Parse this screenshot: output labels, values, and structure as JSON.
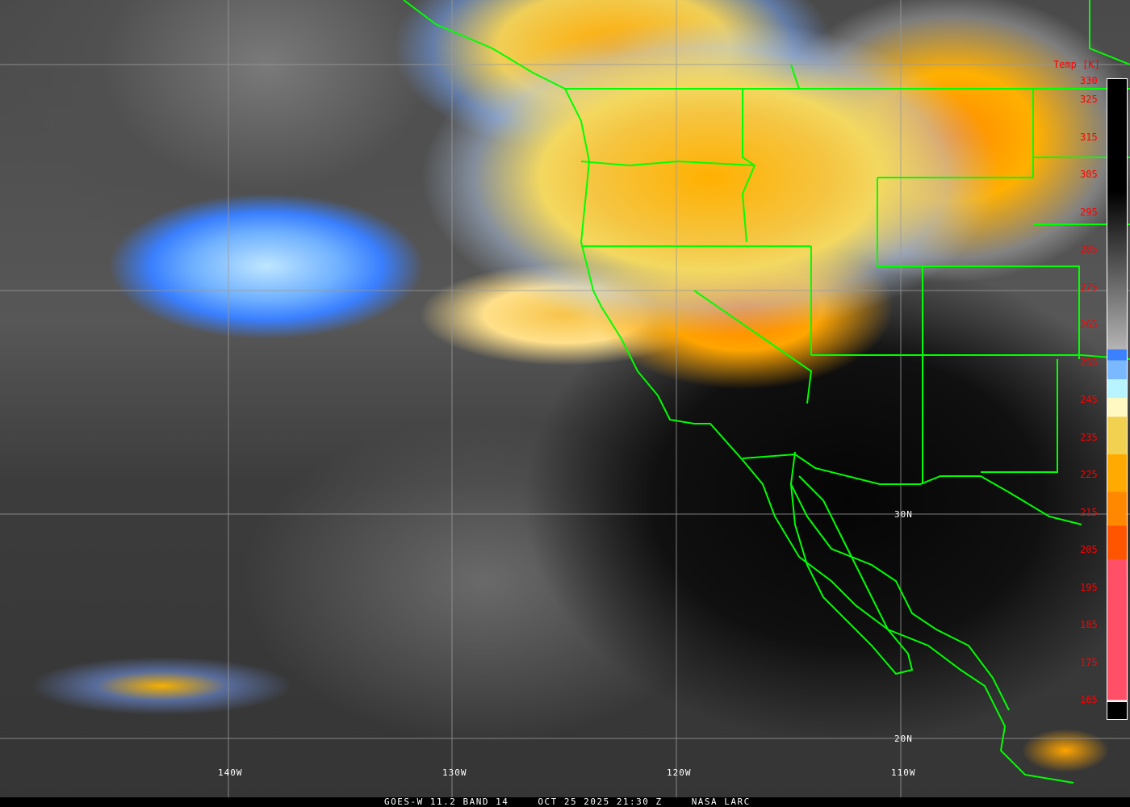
{
  "image": {
    "satellite": "GOES-W",
    "caption": {
      "product": "GOES-W 11.2 BAND 14",
      "datetime": "OCT 25 2025 21:30 Z",
      "source": "NASA LARC"
    }
  },
  "grid": {
    "longitude_labels": [
      "140W",
      "130W",
      "120W",
      "110W"
    ],
    "latitude_labels": [
      "30N",
      "20N"
    ]
  },
  "colorbar": {
    "title": "Temp [K]",
    "ticks": [
      "330",
      "325",
      "315",
      "305",
      "295",
      "285",
      "275",
      "265",
      "255",
      "245",
      "235",
      "225",
      "215",
      "205",
      "195",
      "185",
      "175",
      "165"
    ],
    "colors": {
      "warm_gray_top": "#000000",
      "gray_bottom": "#b4b4b4",
      "blue": "#3a80ff",
      "light_blue": "#7ab8ff",
      "pale_cyan": "#b8f4ff",
      "pale_yellow": "#fff8c0",
      "yellow": "#f2d050",
      "orange_yellow": "#ffaa00",
      "orange": "#ff8800",
      "red_orange": "#ff5500",
      "pink": "#ff5068"
    }
  },
  "overlay_colors": {
    "borders": "#00ff00",
    "grid": "#a0a0a0"
  }
}
